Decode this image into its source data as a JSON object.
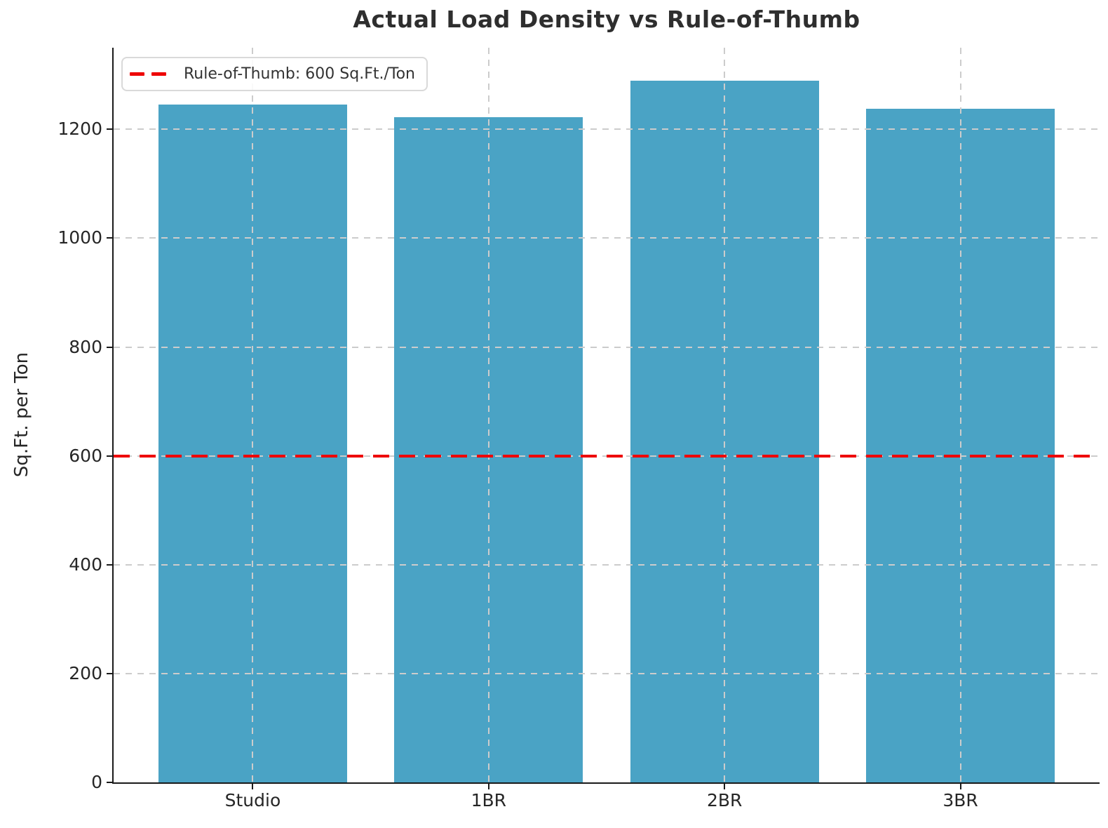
{
  "chart_data": {
    "type": "bar",
    "title": "Actual Load Density vs Rule-of-Thumb",
    "categories": [
      "Studio",
      "1BR",
      "2BR",
      "3BR"
    ],
    "values": [
      1245,
      1222,
      1290,
      1238
    ],
    "xlabel": "",
    "ylabel": "Sq.Ft. per Ton",
    "ylim": [
      0,
      1350
    ],
    "yticks": [
      0,
      200,
      400,
      600,
      800,
      1000,
      1200
    ],
    "xlim": [
      -0.59,
      3.59
    ],
    "bar_width": 0.8,
    "bar_color": "#4AA3C5",
    "grid": true,
    "grid_style": "dashed",
    "grid_color": "#CCCCCC",
    "axis_color": "#262626",
    "background_color": "#FFFFFF",
    "legend_position": "upper left",
    "reference_line": {
      "value": 600,
      "style": "dashed",
      "color": "#EE0000",
      "legend_label": "Rule-of-Thumb: 600 Sq.Ft./Ton"
    }
  }
}
